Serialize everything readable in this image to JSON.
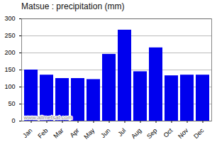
{
  "chart_data": {
    "type": "bar",
    "title": "Matsue : precipitation (mm)",
    "categories": [
      "Jan",
      "Feb",
      "Mar",
      "Apr",
      "May",
      "Jun",
      "Jul",
      "Aug",
      "Sep",
      "Oct",
      "Nov",
      "Dec"
    ],
    "values": [
      150,
      135,
      125,
      125,
      122,
      196,
      267,
      145,
      215,
      133,
      135,
      135
    ],
    "color": "#0000ee",
    "ylim": [
      0,
      300
    ],
    "yticks": [
      0,
      50,
      100,
      150,
      200,
      250,
      300
    ],
    "grid": true,
    "annotations": [
      "www.allmetsat.com"
    ]
  }
}
